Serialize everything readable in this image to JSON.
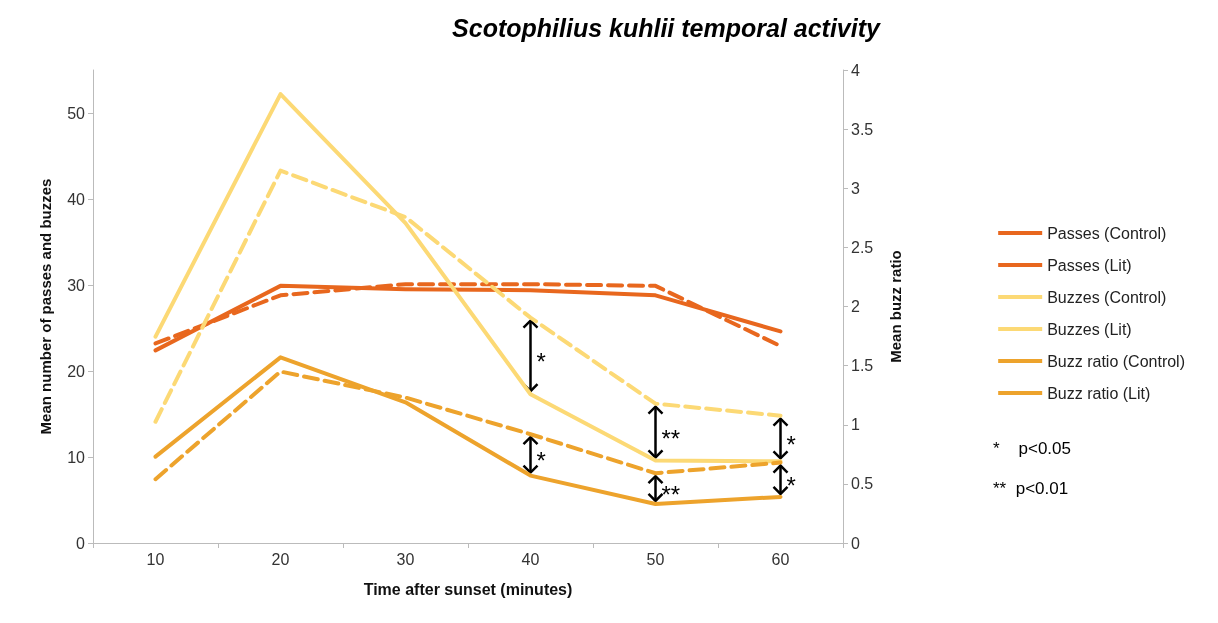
{
  "chart_data": {
    "type": "line",
    "title": "Scotophilius kuhlii temporal activity",
    "xlabel": "Time after sunset (minutes)",
    "ylabel": "Mean number of passes and buzzes",
    "y2label": "Mean buzz ratio",
    "categories": [
      "10",
      "20",
      "30",
      "40",
      "50",
      "60"
    ],
    "series": [
      {
        "name": "Passes (Control)",
        "color": "#e8671e",
        "line_style": "solid",
        "values": [
          22.4,
          29.9,
          29.5,
          29.4,
          28.8,
          24.6
        ]
      },
      {
        "name": "Passes (Lit)",
        "color": "#e8671e",
        "line_style": "dashed",
        "values": [
          23.2,
          28.8,
          30.1,
          30.1,
          29.9,
          22.9
        ]
      },
      {
        "name": "Buzzes (Control)",
        "color": "#fcd975",
        "line_style": "solid",
        "values": [
          24.0,
          52.2,
          37.2,
          17.3,
          9.6,
          9.5
        ]
      },
      {
        "name": "Buzzes (Lit)",
        "color": "#fcd975",
        "line_style": "dashed",
        "values": [
          14.1,
          43.3,
          37.9,
          26.2,
          16.2,
          14.8
        ]
      },
      {
        "name": "Buzz ratio (Control)",
        "color": "#eda32c",
        "line_style": "solid",
        "axis": "y2",
        "values": [
          0.73,
          1.57,
          1.19,
          0.57,
          0.33,
          0.39
        ]
      },
      {
        "name": "Buzz ratio (Lit)",
        "color": "#eda32c",
        "line_style": "dashed",
        "axis": "y2",
        "values": [
          0.54,
          1.45,
          1.23,
          0.92,
          0.59,
          0.68
        ]
      }
    ],
    "ylim": [
      0,
      55
    ],
    "yticks": [
      0,
      10,
      20,
      30,
      40,
      50
    ],
    "y2lim": [
      0,
      4
    ],
    "y2ticks": [
      0,
      0.5,
      1,
      1.5,
      2,
      2.5,
      3,
      3.5,
      4
    ],
    "marker": "none",
    "grid": false,
    "legend": "right",
    "annotations": [
      {
        "text": "*",
        "x": "40",
        "y": 17.3
      },
      {
        "text": "*",
        "x": "40",
        "y": 7.84
      },
      {
        "text": "**",
        "x": "50",
        "y": 9.6
      },
      {
        "text": "**",
        "x": "50",
        "y": 4.54
      },
      {
        "text": "*",
        "x": "60",
        "y": 9.5
      },
      {
        "text": "*",
        "x": "60",
        "y": 5.36
      },
      "*    p<0.05",
      "**  p<0.01"
    ]
  }
}
